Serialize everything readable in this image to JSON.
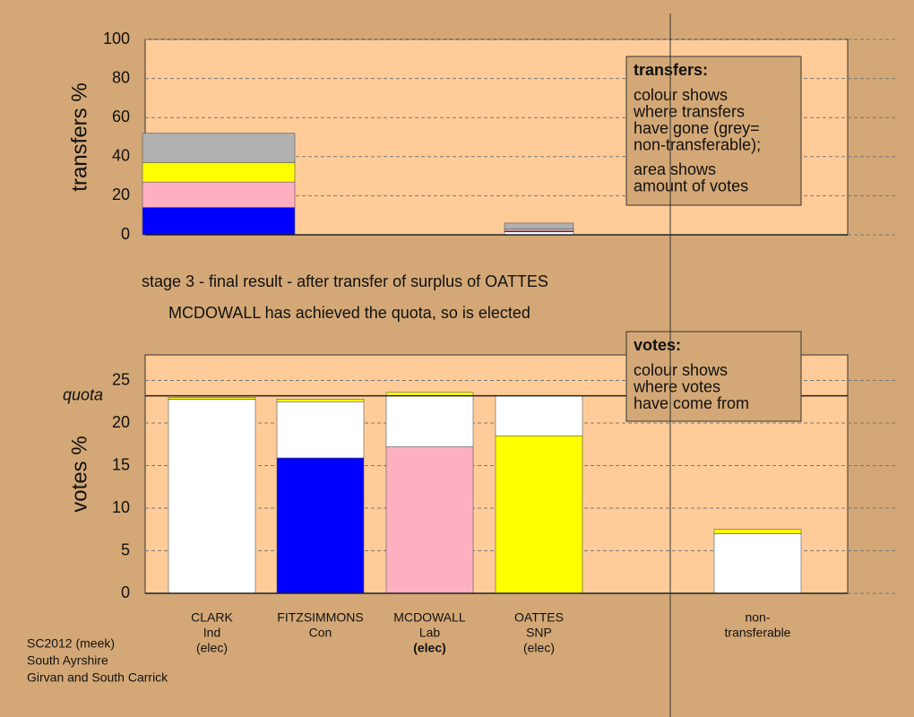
{
  "chart_data": [
    {
      "type": "bar",
      "y_label": "transfers %",
      "ylim": [
        0,
        100
      ],
      "yticks": [
        0,
        20,
        40,
        60,
        80,
        100
      ],
      "grid": true,
      "bars": [
        {
          "segments": [
            {
              "color": "#0000ff",
              "value": 14
            },
            {
              "color": "#ffb0c0",
              "value": 13
            },
            {
              "color": "#ffff00",
              "value": 10
            },
            {
              "color": "#b0b0b0",
              "value": 15
            }
          ]
        },
        {
          "segments": [
            {
              "color": "#ffffff",
              "value": 1.5
            },
            {
              "color": "#0000ff",
              "value": 0.5
            },
            {
              "color": "#ffb0c0",
              "value": 1
            },
            {
              "color": "#b0b0b0",
              "value": 3
            }
          ]
        }
      ],
      "legend": {
        "title": "transfers:",
        "paragraphs": [
          [
            "colour shows",
            "where transfers",
            "have gone (grey=",
            "non-transferable);"
          ],
          [
            "area shows",
            "amount of votes"
          ]
        ]
      }
    },
    {
      "type": "bar",
      "y_label": "votes %",
      "ylim": [
        0,
        28
      ],
      "yticks": [
        0,
        5,
        10,
        15,
        20,
        25
      ],
      "grid": true,
      "quota": 23.2,
      "quota_label": "quota",
      "categories": [
        [
          "CLARK",
          "Ind",
          "(elec)"
        ],
        [
          "FITZSIMMONS",
          "Con"
        ],
        [
          "MCDOWALL",
          "Lab",
          "(elec)"
        ],
        [
          "OATTES",
          "SNP",
          "(elec)"
        ],
        [
          "non-",
          "transferable"
        ]
      ],
      "bars": [
        {
          "segments": [
            {
              "color": "#ffffff",
              "value": 22.8
            },
            {
              "color": "#ffff00",
              "value": 0.2
            }
          ]
        },
        {
          "segments": [
            {
              "color": "#0000ff",
              "value": 15.9
            },
            {
              "color": "#ffffff",
              "value": 6.6
            },
            {
              "color": "#ffff00",
              "value": 0.3
            }
          ]
        },
        {
          "segments": [
            {
              "color": "#ffb0c0",
              "value": 17.2
            },
            {
              "color": "#ffffff",
              "value": 6.0
            },
            {
              "color": "#ffff00",
              "value": 0.4
            }
          ]
        },
        {
          "segments": [
            {
              "color": "#ffff00",
              "value": 18.5
            },
            {
              "color": "#ffffff",
              "value": 4.7
            }
          ]
        },
        {
          "segments": [
            {
              "color": "#ffffff",
              "value": 7.0
            },
            {
              "color": "#ffff00",
              "value": 0.5
            }
          ]
        }
      ],
      "legend": {
        "title": "votes:",
        "paragraphs": [
          [
            "colour shows",
            "where votes",
            "have come from"
          ]
        ]
      }
    }
  ],
  "stage_text": "stage 3 - final result - after transfer of surplus of OATTES",
  "result_text": "MCDOWALL has achieved the quota, so is elected",
  "footer": [
    "SC2012 (meek)",
    "South Ayrshire",
    "Girvan and South Carrick"
  ]
}
